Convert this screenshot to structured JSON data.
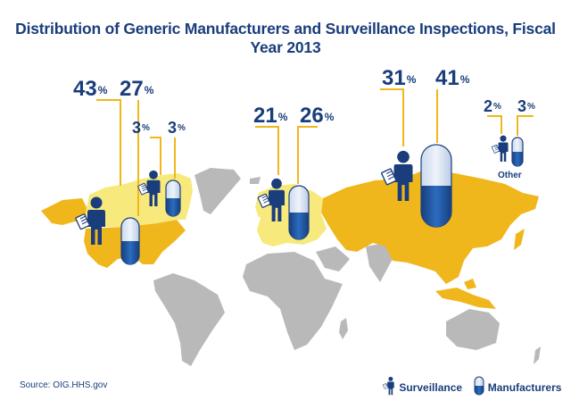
{
  "colors": {
    "navy": "#1a3d7c",
    "gold": "#f0b71c",
    "pale_yellow": "#f7e97c",
    "land_gray": "#b9b9b9",
    "capsule_blue": "#1f5aa8",
    "capsule_light": "#d8e4f3"
  },
  "source": "Source: OIG.HHS.gov",
  "legend": {
    "surveillance_label": "Surveillance",
    "manufacturers_label": "Manufacturers"
  },
  "other_label": "Other",
  "chart_data": {
    "type": "table",
    "title": "Distribution of Generic Manufacturers and Surveillance Inspections, Fiscal Year 2013",
    "columns": [
      "Surveillance",
      "Manufacturers"
    ],
    "unit": "%",
    "regions": [
      {
        "name": "United States",
        "surveillance": 43,
        "manufacturers": 27
      },
      {
        "name": "Canada",
        "surveillance": 3,
        "manufacturers": 3
      },
      {
        "name": "Europe",
        "surveillance": 21,
        "manufacturers": 26
      },
      {
        "name": "Asia",
        "surveillance": 31,
        "manufacturers": 41
      },
      {
        "name": "Other",
        "surveillance": 2,
        "manufacturers": 3
      }
    ]
  }
}
